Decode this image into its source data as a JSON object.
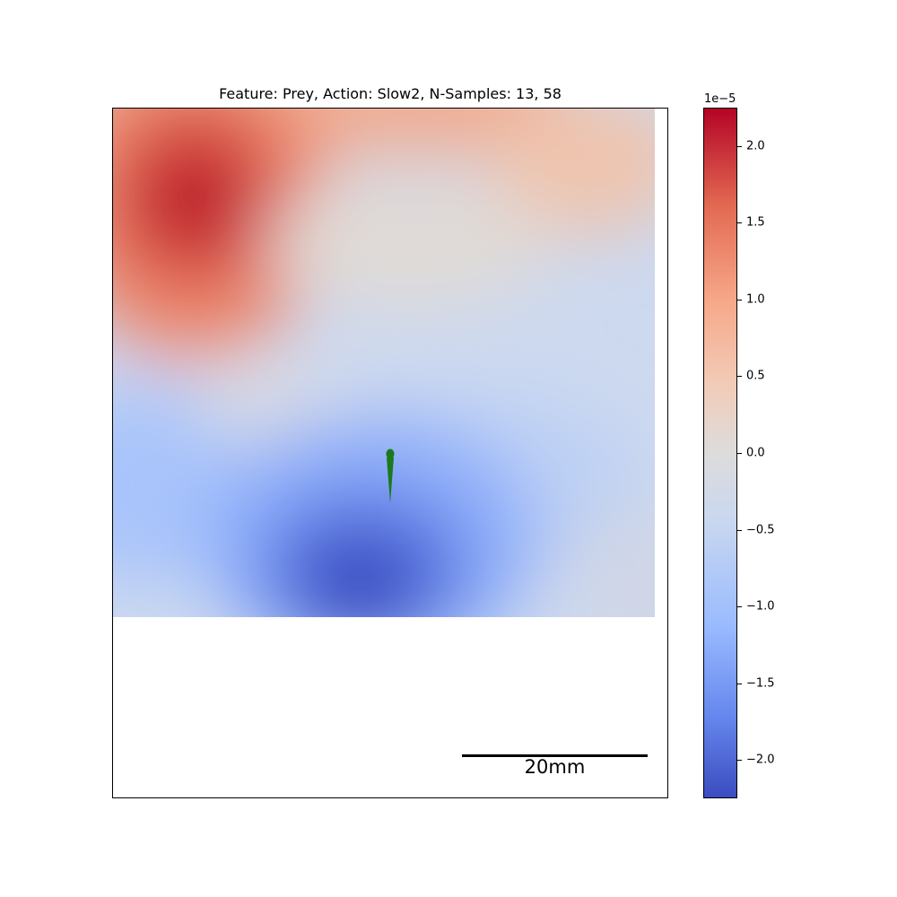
{
  "chart_data": {
    "type": "heatmap",
    "title": "Feature: Prey, Action: Slow2, N-Samples: 13, 58",
    "scale_bar_label": "20mm",
    "colormap": "coolwarm",
    "colorbar": {
      "exponent_label": "1e−5",
      "range": [
        -2.25,
        2.25
      ],
      "ticks": [
        {
          "value": 2.0,
          "label": "2.0"
        },
        {
          "value": 1.5,
          "label": "1.5"
        },
        {
          "value": 1.0,
          "label": "1.0"
        },
        {
          "value": 0.5,
          "label": "0.5"
        },
        {
          "value": 0.0,
          "label": "0.0"
        },
        {
          "value": -0.5,
          "label": "−0.5"
        },
        {
          "value": -1.0,
          "label": "−1.0"
        },
        {
          "value": -1.5,
          "label": "−1.5"
        },
        {
          "value": -2.0,
          "label": "−2.0"
        }
      ]
    },
    "colors": {
      "max": "#b40426",
      "positive": "#f4a582",
      "neutral": "#dddcdc",
      "negative": "#9abbff",
      "min": "#3b4cc0",
      "fish": "#1b7a1b"
    }
  }
}
